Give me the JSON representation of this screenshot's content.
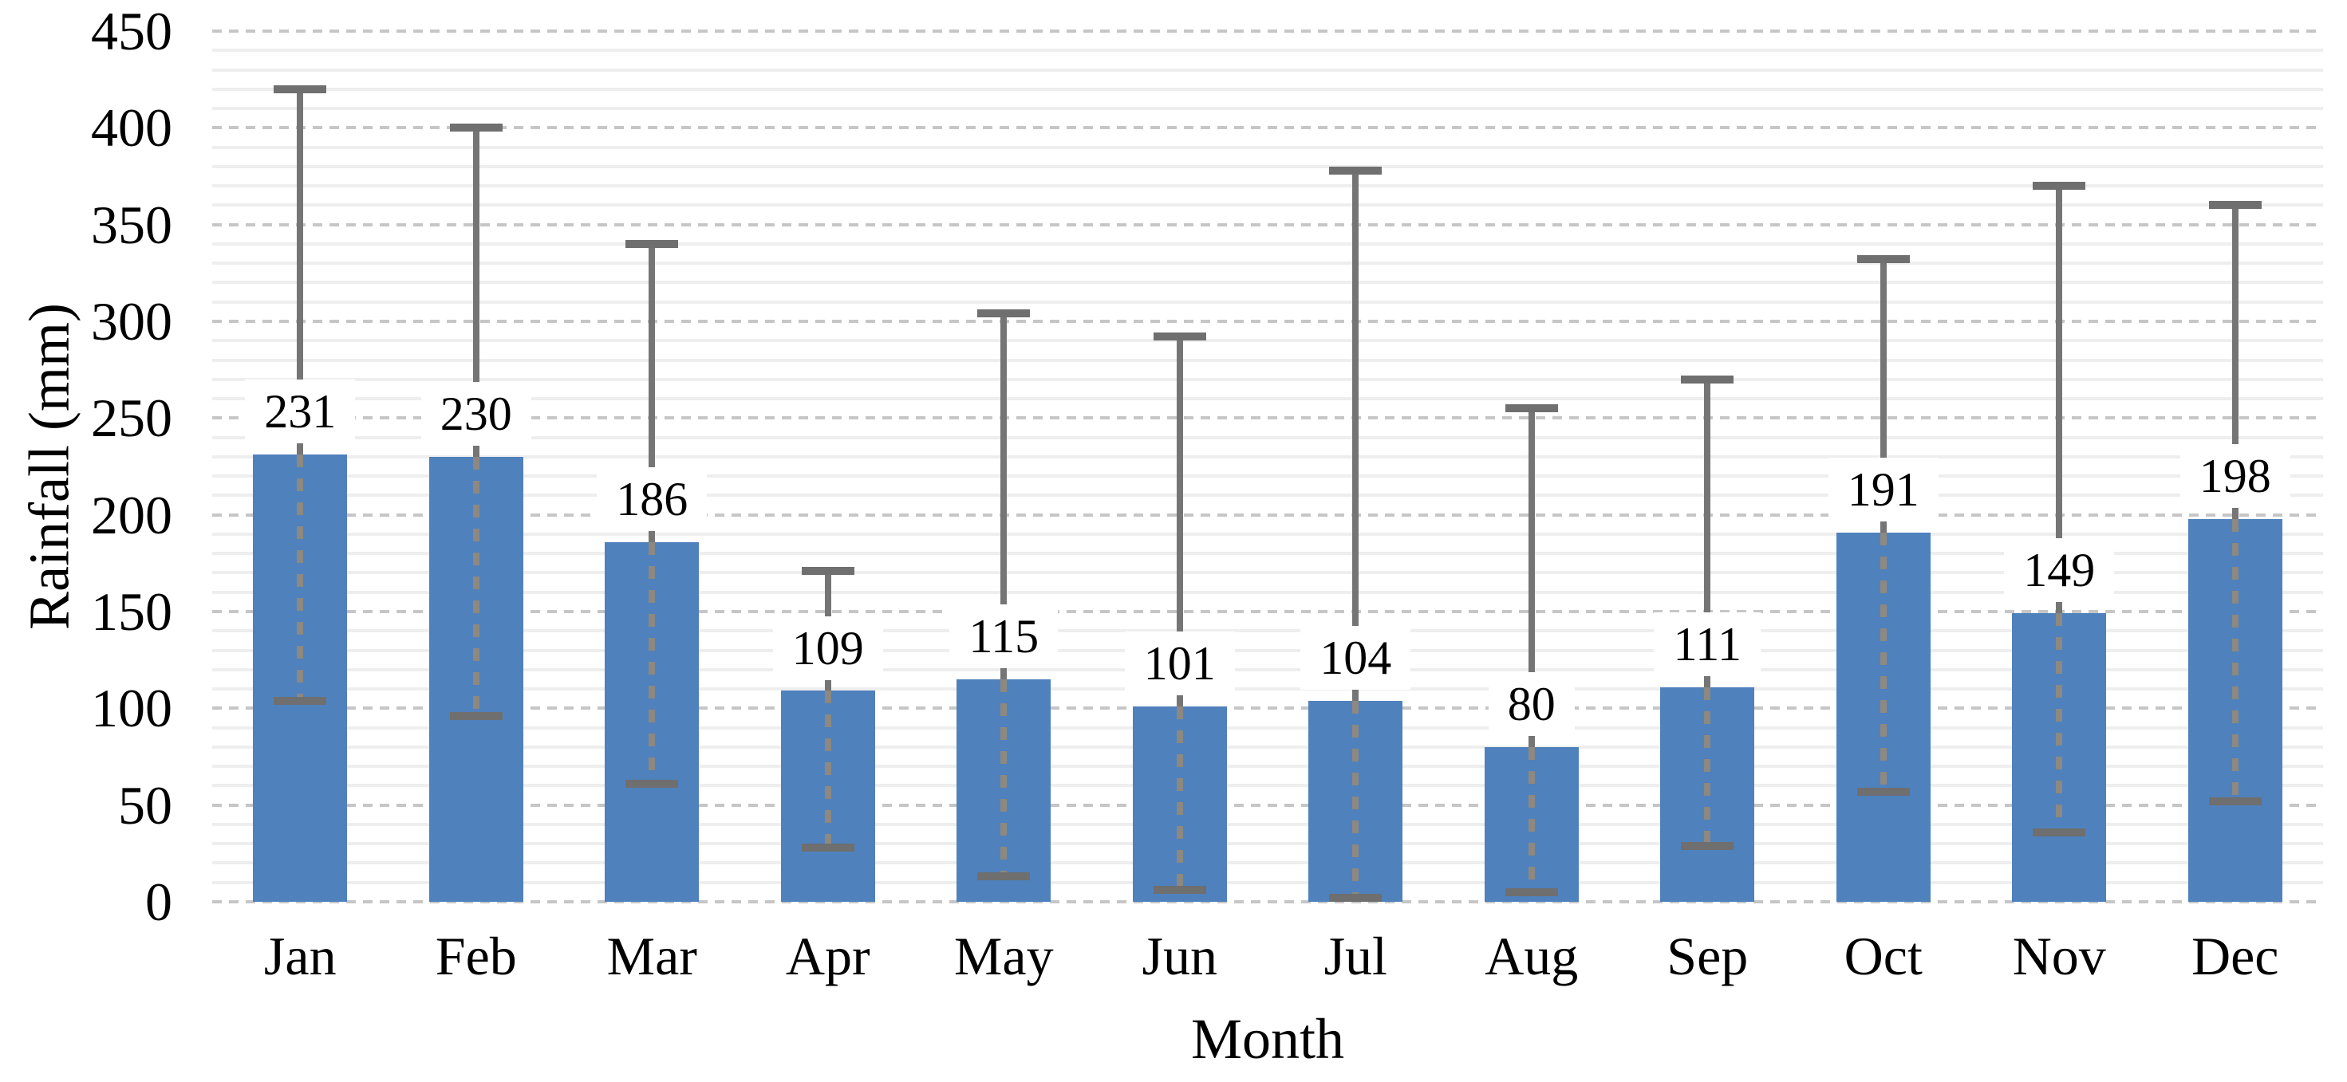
{
  "chart_data": {
    "type": "bar",
    "title": "",
    "xlabel": "Month",
    "ylabel": "Rainfall (mm)",
    "categories": [
      "Jan",
      "Feb",
      "Mar",
      "Apr",
      "May",
      "Jun",
      "Jul",
      "Aug",
      "Sep",
      "Oct",
      "Nov",
      "Dec"
    ],
    "values": [
      231,
      230,
      186,
      109,
      115,
      101,
      104,
      80,
      111,
      191,
      149,
      198
    ],
    "data_labels": [
      "231",
      "230",
      "186",
      "109",
      "115",
      "101",
      "104",
      "80",
      "111",
      "191",
      "149",
      "198"
    ],
    "error_high": [
      420,
      400,
      340,
      171,
      304,
      292,
      378,
      255,
      270,
      332,
      370,
      360
    ],
    "error_low": [
      104,
      96,
      61,
      28,
      13,
      6,
      2,
      5,
      29,
      57,
      36,
      52
    ],
    "ylim": [
      0,
      450
    ],
    "ytick_step": 50,
    "minor_grid_step": 10,
    "yticks": [
      450,
      400,
      350,
      300,
      250,
      200,
      150,
      100,
      50,
      0
    ],
    "grid": "horizontal major dotted + minor light solid",
    "legend": "none"
  },
  "colors": {
    "bar": "#4f81bd",
    "whisker": "#757575",
    "whisker_cap": "#6f6f6f",
    "major_grid": "#c6c6c6",
    "minor_grid": "#eeeeee",
    "label_background": "#ffffff",
    "text": "#000000",
    "background": "#ffffff"
  }
}
